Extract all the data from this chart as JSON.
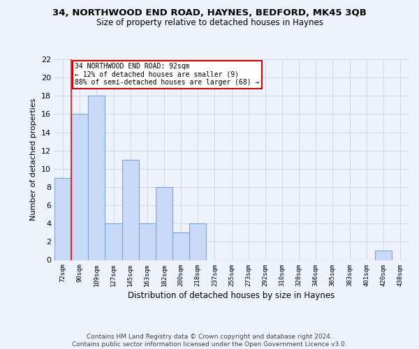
{
  "title1": "34, NORTHWOOD END ROAD, HAYNES, BEDFORD, MK45 3QB",
  "title2": "Size of property relative to detached houses in Haynes",
  "xlabel": "Distribution of detached houses by size in Haynes",
  "ylabel": "Number of detached properties",
  "bin_labels": [
    "72sqm",
    "90sqm",
    "109sqm",
    "127sqm",
    "145sqm",
    "163sqm",
    "182sqm",
    "200sqm",
    "218sqm",
    "237sqm",
    "255sqm",
    "273sqm",
    "292sqm",
    "310sqm",
    "328sqm",
    "346sqm",
    "365sqm",
    "383sqm",
    "401sqm",
    "420sqm",
    "438sqm"
  ],
  "bin_values": [
    9,
    16,
    18,
    4,
    11,
    4,
    8,
    3,
    4,
    0,
    0,
    0,
    0,
    0,
    0,
    0,
    0,
    0,
    0,
    1,
    0
  ],
  "bar_color": "#c9daf8",
  "bar_edge_color": "#7ba7d4",
  "ylim": [
    0,
    22
  ],
  "yticks": [
    0,
    2,
    4,
    6,
    8,
    10,
    12,
    14,
    16,
    18,
    20,
    22
  ],
  "redline_bin": 1,
  "annotation_text": "34 NORTHWOOD END ROAD: 92sqm\n← 12% of detached houses are smaller (9)\n88% of semi-detached houses are larger (68) →",
  "annotation_box_color": "#ffffff",
  "annotation_box_edge": "#cc0000",
  "footer": "Contains HM Land Registry data © Crown copyright and database right 2024.\nContains public sector information licensed under the Open Government Licence v3.0.",
  "background_color": "#eef2fb",
  "grid_color": "#d0d8ee"
}
